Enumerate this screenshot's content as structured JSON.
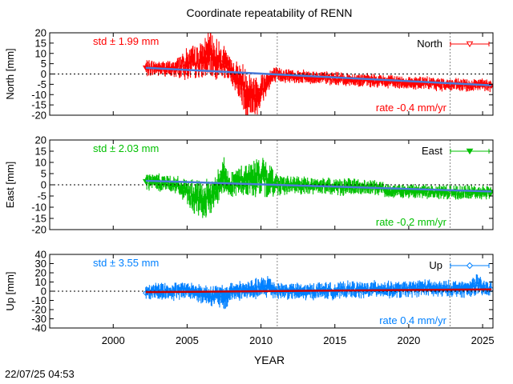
{
  "title": "Coordinate repeatability of RENN",
  "timestamp": "22/07/25 04:53",
  "xlabel": "YEAR",
  "chart_data": [
    {
      "type": "scatter",
      "component": "North",
      "ylabel": "North [mm]",
      "legend": "North",
      "legend_position": "top-right",
      "std_label": "std ± 1.99 mm",
      "rate_label": "rate -0.4 mm/yr",
      "color": "#ff0000",
      "trend_color": "#4a7bd8",
      "marker": "triangle-down",
      "xlim": [
        1995.7,
        2025.7
      ],
      "ylim": [
        -20,
        20
      ],
      "yticks": [
        -20,
        -15,
        -10,
        -5,
        0,
        5,
        10,
        15,
        20
      ],
      "xticks": [
        2000,
        2005,
        2010,
        2015,
        2020,
        2025
      ],
      "vlines": [
        2011.1,
        2022.8
      ],
      "trend": {
        "x": [
          2002.2,
          2025.6
        ],
        "y": [
          3.0,
          -5.5
        ]
      },
      "x": [
        2002.2,
        2003.0,
        2004.0,
        2005.0,
        2006.0,
        2006.5,
        2007.0,
        2007.5,
        2008.0,
        2008.5,
        2009.0,
        2009.5,
        2010.0,
        2010.6,
        2011.0,
        2012.0,
        2013.0,
        2014.0,
        2015.0,
        2016.0,
        2017.0,
        2018.0,
        2019.0,
        2020.0,
        2021.0,
        2022.0,
        2023.0,
        2024.0,
        2025.0,
        2025.6
      ],
      "y": [
        3.0,
        2.8,
        2.4,
        5.0,
        6.0,
        9.5,
        7.0,
        5.5,
        1.0,
        -3.0,
        -8.5,
        -11.0,
        -8.0,
        -2.0,
        -0.5,
        -0.8,
        -1.4,
        -1.8,
        -2.2,
        -2.6,
        -3.0,
        -3.4,
        -3.8,
        -4.2,
        -4.5,
        -4.9,
        -5.3,
        -5.6,
        -5.4,
        -5.8
      ],
      "spread": [
        3,
        3,
        3,
        6,
        7,
        9,
        8,
        6,
        5,
        7,
        10,
        8,
        7,
        4,
        3,
        2.5,
        2.5,
        2.5,
        2.5,
        2.5,
        2.5,
        2.5,
        2.5,
        2.5,
        2.5,
        2.5,
        2.5,
        2.5,
        2.5,
        2.5
      ]
    },
    {
      "type": "scatter",
      "component": "East",
      "ylabel": "East [mm]",
      "legend": "East",
      "legend_position": "top-right",
      "std_label": "std ± 2.03 mm",
      "rate_label": "rate -0.2 mm/yr",
      "color": "#00c000",
      "trend_color": "#4a7bd8",
      "marker": "triangle-down",
      "xlim": [
        1995.7,
        2025.7
      ],
      "ylim": [
        -20,
        20
      ],
      "yticks": [
        -20,
        -15,
        -10,
        -5,
        0,
        5,
        10,
        15,
        20
      ],
      "xticks": [
        2000,
        2005,
        2010,
        2015,
        2020,
        2025
      ],
      "vlines": [
        2011.1,
        2022.8
      ],
      "trend": {
        "x": [
          2002.2,
          2025.6
        ],
        "y": [
          1.8,
          -3.0
        ]
      },
      "x": [
        2002.2,
        2003.0,
        2004.0,
        2005.0,
        2005.5,
        2006.0,
        2006.5,
        2007.0,
        2007.4,
        2007.8,
        2008.5,
        2009.0,
        2010.0,
        2010.5,
        2011.0,
        2012.0,
        2013.0,
        2014.0,
        2015.0,
        2016.0,
        2017.0,
        2018.0,
        2019.0,
        2020.0,
        2021.0,
        2022.0,
        2023.0,
        2024.0,
        2025.0,
        2025.6
      ],
      "y": [
        1.5,
        1.2,
        0.5,
        -3.0,
        -6.0,
        -7.0,
        -6.0,
        -2.0,
        5.0,
        0.0,
        1.5,
        2.5,
        3.5,
        2.0,
        0.5,
        -0.2,
        -0.4,
        -0.6,
        -0.8,
        -1.0,
        -1.2,
        -1.4,
        -2.8,
        -3.0,
        -3.0,
        -3.2,
        -3.2,
        -3.4,
        -3.2,
        -3.2
      ],
      "spread": [
        3,
        3,
        3,
        4,
        6,
        7,
        6,
        5,
        8,
        4,
        5,
        6,
        7,
        6,
        4,
        3,
        3,
        3,
        3,
        3,
        2.5,
        2.5,
        2.5,
        2.5,
        2.5,
        2.5,
        2.5,
        2.5,
        2.5,
        2.5
      ]
    },
    {
      "type": "scatter",
      "component": "Up",
      "ylabel": "Up [mm]",
      "legend": "Up",
      "legend_position": "top-right",
      "std_label": "std ± 3.55 mm",
      "rate_label": "rate  0.4 mm/yr",
      "color": "#0080ff",
      "trend_color": "#cc0000",
      "marker": "diamond",
      "xlim": [
        1995.7,
        2025.7
      ],
      "ylim": [
        -40,
        40
      ],
      "yticks": [
        -40,
        -30,
        -20,
        -10,
        0,
        10,
        20,
        30,
        40
      ],
      "xticks": [
        2000,
        2005,
        2010,
        2015,
        2020,
        2025
      ],
      "xtick_labels": [
        "2000",
        "2005",
        "2010",
        "2015",
        "2020",
        "2025"
      ],
      "vlines": [
        2011.1,
        2022.8
      ],
      "trend": {
        "x": [
          2002.2,
          2025.6
        ],
        "y": [
          -1.0,
          2.0
        ]
      },
      "x": [
        2002.2,
        2003.0,
        2004.0,
        2005.0,
        2006.0,
        2007.0,
        2007.5,
        2008.0,
        2009.0,
        2010.0,
        2010.5,
        2011.0,
        2012.0,
        2013.0,
        2014.0,
        2015.0,
        2016.0,
        2017.0,
        2018.0,
        2019.0,
        2020.0,
        2021.0,
        2022.0,
        2023.0,
        2024.0,
        2024.6,
        2025.0,
        2025.6
      ],
      "y": [
        -2.0,
        1.0,
        -1.0,
        2.0,
        -3.0,
        -5.0,
        -8.0,
        0.0,
        1.0,
        3.0,
        6.0,
        1.0,
        0.0,
        -1.0,
        1.0,
        0.0,
        2.0,
        1.0,
        3.0,
        1.0,
        2.0,
        4.0,
        2.0,
        3.0,
        2.0,
        8.0,
        3.0,
        2.0
      ],
      "spread": [
        6,
        7,
        7,
        8,
        8,
        9,
        11,
        8,
        8,
        9,
        10,
        7,
        7,
        7,
        7,
        7,
        7,
        7,
        7,
        7,
        7,
        7,
        7,
        7,
        7,
        9,
        7,
        7
      ]
    }
  ]
}
